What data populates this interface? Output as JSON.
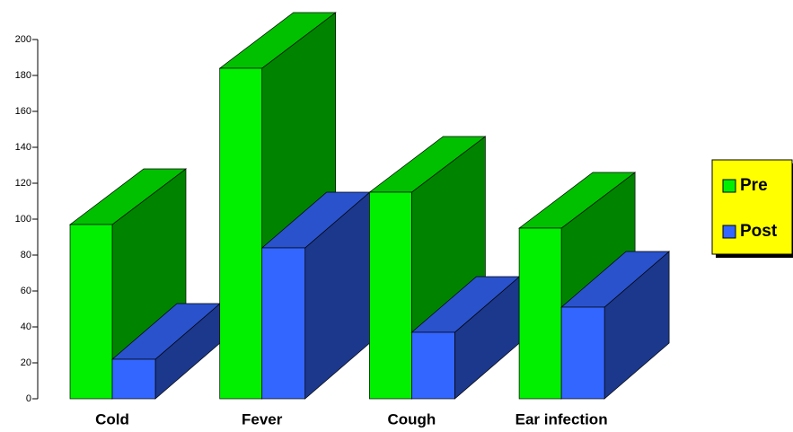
{
  "chart_data": {
    "type": "bar3d",
    "categories": [
      "Cold",
      "Fever",
      "Cough",
      "Ear infection"
    ],
    "series": [
      {
        "name": "Pre",
        "color": "#00f000",
        "values": [
          97,
          184,
          115,
          95
        ]
      },
      {
        "name": "Post",
        "color": "#3366ff",
        "values": [
          22,
          84,
          37,
          51
        ]
      }
    ],
    "ylim": [
      0,
      200
    ],
    "yticks": [
      0,
      20,
      40,
      60,
      80,
      100,
      120,
      140,
      160,
      180,
      200
    ],
    "legend": "right"
  }
}
